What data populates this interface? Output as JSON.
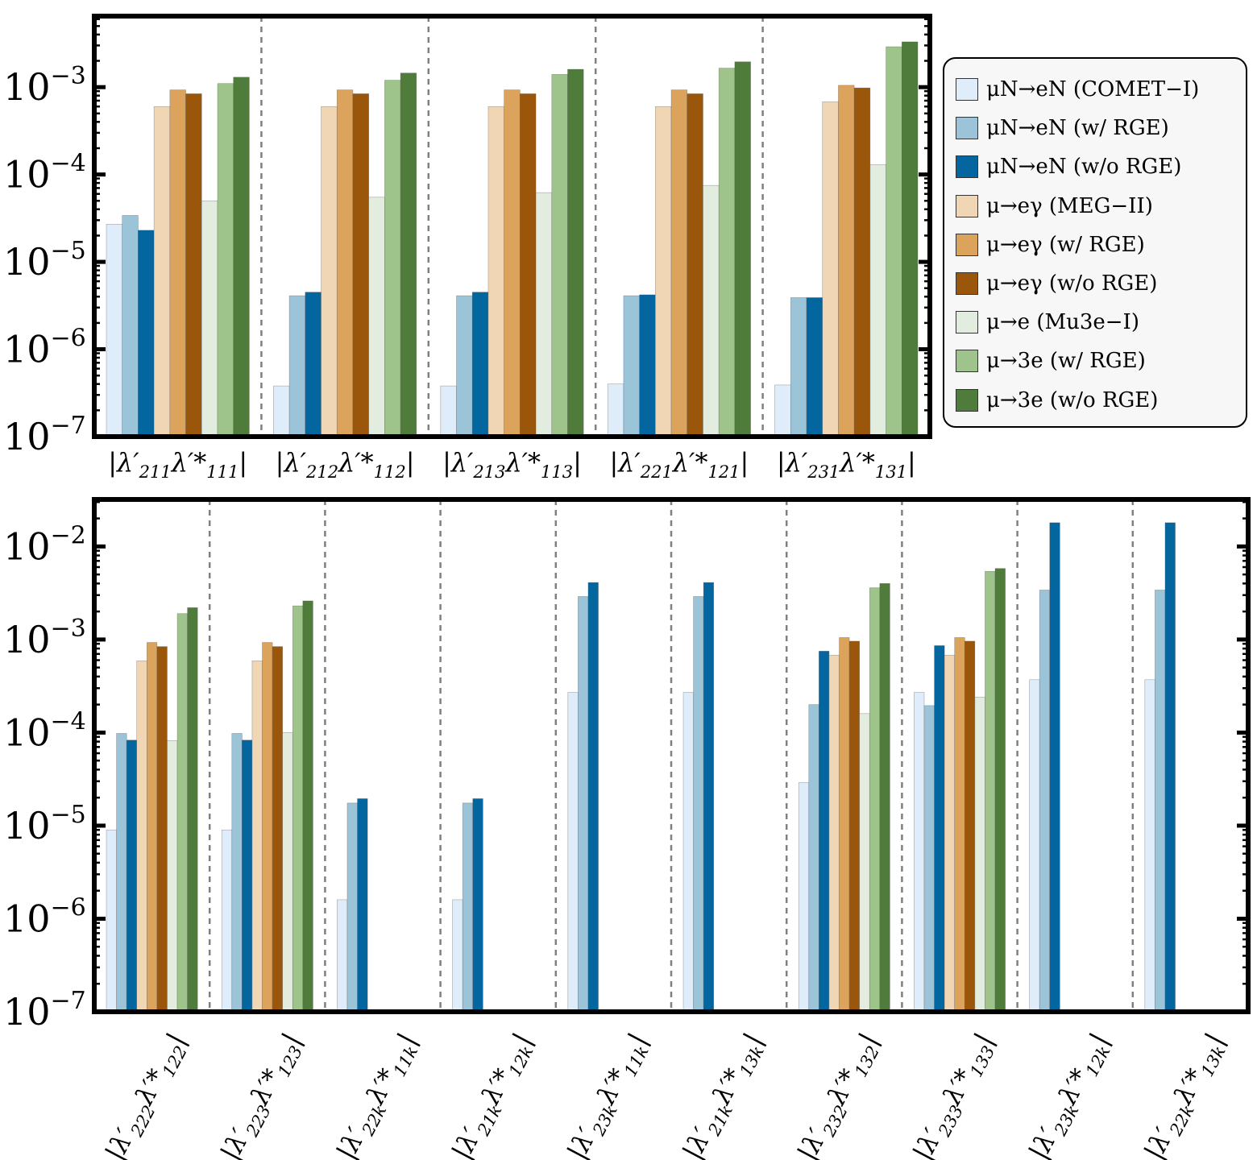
{
  "series": [
    {
      "name": "μN→eN (COMET−I)",
      "color": "#deedf9"
    },
    {
      "name": "μN→eN (w/ RGE)",
      "color": "#9cc4d9"
    },
    {
      "name": "μN→eN (w/o RGE)",
      "color": "#03669e"
    },
    {
      "name": "μ→eγ (MEG−II)",
      "color": "#f1d6b6"
    },
    {
      "name": "μ→eγ (w/ RGE)",
      "color": "#dca35d"
    },
    {
      "name": "μ→eγ (w/o RGE)",
      "color": "#9a560a"
    },
    {
      "name": "μ→e (Mu3e−I)",
      "color": "#e2ecdf"
    },
    {
      "name": "μ→3e (w/ RGE)",
      "color": "#9ec38b"
    },
    {
      "name": "μ→3e (w/o RGE)",
      "color": "#4f7b3b"
    }
  ],
  "chart_data": [
    {
      "type": "bar",
      "yscale": "log",
      "ylim": [
        1e-07,
        0.0065
      ],
      "ytick_labels": [
        {
          "base": "10",
          "exp": "−7"
        },
        {
          "base": "10",
          "exp": "−6"
        },
        {
          "base": "10",
          "exp": "−5"
        },
        {
          "base": "10",
          "exp": "−4"
        },
        {
          "base": "10",
          "exp": "−3"
        }
      ],
      "ytick_values": [
        1e-07,
        1e-06,
        1e-05,
        0.0001,
        0.001
      ],
      "categories": [
        {
          "lam1": "211",
          "lam2": "111"
        },
        {
          "lam1": "212",
          "lam2": "112"
        },
        {
          "lam1": "213",
          "lam2": "113"
        },
        {
          "lam1": "221",
          "lam2": "121"
        },
        {
          "lam1": "231",
          "lam2": "131"
        }
      ],
      "values": [
        [
          2.7e-05,
          3.4e-05,
          2.3e-05,
          0.0006,
          0.00093,
          0.00084,
          5e-05,
          0.0011,
          0.0013
        ],
        [
          3.8e-07,
          4.1e-06,
          4.5e-06,
          0.0006,
          0.00093,
          0.00084,
          5.5e-05,
          0.0012,
          0.00145
        ],
        [
          3.8e-07,
          4.1e-06,
          4.5e-06,
          0.0006,
          0.00093,
          0.00084,
          6.2e-05,
          0.0014,
          0.0016
        ],
        [
          4e-07,
          4.1e-06,
          4.2e-06,
          0.0006,
          0.00093,
          0.00084,
          7.5e-05,
          0.00165,
          0.00195
        ],
        [
          3.9e-07,
          3.9e-06,
          3.9e-06,
          0.00068,
          0.00105,
          0.00098,
          0.00013,
          0.0029,
          0.0033
        ]
      ]
    },
    {
      "type": "bar",
      "yscale": "log",
      "ylim": [
        1e-07,
        0.032
      ],
      "ytick_labels": [
        {
          "base": "10",
          "exp": "−7"
        },
        {
          "base": "10",
          "exp": "−6"
        },
        {
          "base": "10",
          "exp": "−5"
        },
        {
          "base": "10",
          "exp": "−4"
        },
        {
          "base": "10",
          "exp": "−3"
        },
        {
          "base": "10",
          "exp": "−2"
        }
      ],
      "ytick_values": [
        1e-07,
        1e-06,
        1e-05,
        0.0001,
        0.001,
        0.01
      ],
      "categories": [
        {
          "lam1": "222",
          "lam2": "122"
        },
        {
          "lam1": "223",
          "lam2": "123"
        },
        {
          "lam1": "22k",
          "lam2": "11k"
        },
        {
          "lam1": "21k",
          "lam2": "12k"
        },
        {
          "lam1": "23k",
          "lam2": "11k"
        },
        {
          "lam1": "21k",
          "lam2": "13k"
        },
        {
          "lam1": "232",
          "lam2": "132"
        },
        {
          "lam1": "233",
          "lam2": "133"
        },
        {
          "lam1": "23k",
          "lam2": "12k"
        },
        {
          "lam1": "22k",
          "lam2": "13k"
        }
      ],
      "values": [
        [
          9e-06,
          9.8e-05,
          8.3e-05,
          0.00059,
          0.00093,
          0.00084,
          8.2e-05,
          0.0019,
          0.0022
        ],
        [
          9e-06,
          9.8e-05,
          8.3e-05,
          0.00059,
          0.00093,
          0.00084,
          0.0001,
          0.0023,
          0.0026
        ],
        [
          1.6e-06,
          1.75e-05,
          1.95e-05,
          null,
          null,
          null,
          null,
          null,
          null
        ],
        [
          1.6e-06,
          1.75e-05,
          1.95e-05,
          null,
          null,
          null,
          null,
          null,
          null
        ],
        [
          0.00027,
          0.0029,
          0.0041,
          null,
          null,
          null,
          null,
          null,
          null
        ],
        [
          0.00027,
          0.0029,
          0.0041,
          null,
          null,
          null,
          null,
          null,
          null
        ],
        [
          2.9e-05,
          0.0002,
          0.00075,
          0.00068,
          0.00105,
          0.00096,
          0.00016,
          0.0036,
          0.004
        ],
        [
          0.00027,
          0.000195,
          0.00086,
          0.00068,
          0.00105,
          0.00096,
          0.00024,
          0.0054,
          0.0058
        ],
        [
          0.00037,
          0.0034,
          0.018,
          null,
          null,
          null,
          null,
          null,
          null
        ],
        [
          0.00037,
          0.0034,
          0.018,
          null,
          null,
          null,
          null,
          null,
          null
        ]
      ]
    }
  ]
}
